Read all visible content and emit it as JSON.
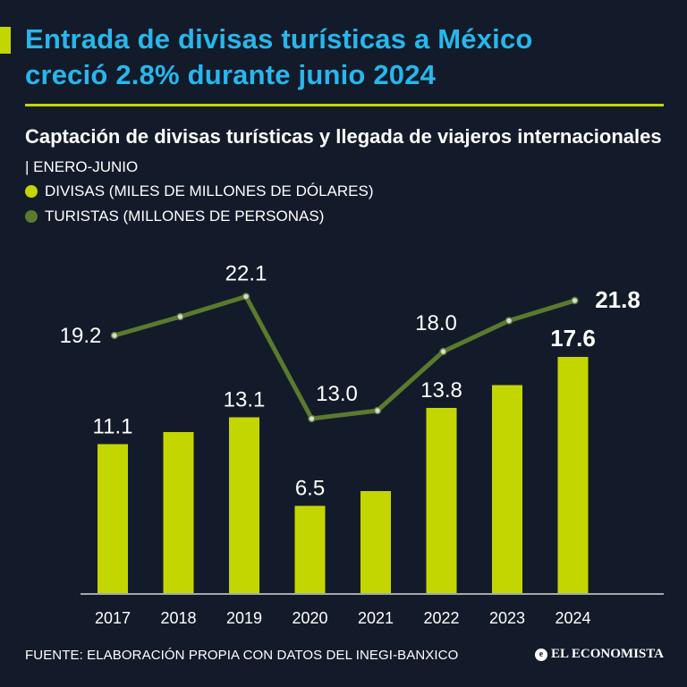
{
  "headline": {
    "line1": "Entrada de divisas turísticas a México",
    "line2": "creció 2.8% durante junio 2024"
  },
  "subtitle": {
    "bold_text": "Captación de divisas turísticas y llegada de viajeros internacionales",
    "separator": " | ",
    "period": "ENERO-JUNIO"
  },
  "colors": {
    "background": "#131b2a",
    "headline": "#27b7ec",
    "accent": "#c4d600",
    "bars": "#c4d600",
    "line": "#5b7a2e"
  },
  "footer": {
    "source": "FUENTE: ELABORACIÓN PROPIA CON DATOS DEL INEGI-BANXICO",
    "brand": "EL ECONOMISTA",
    "brand_icon": "e-logo-icon"
  },
  "chart_data": {
    "type": "bar",
    "categories": [
      "2017",
      "2018",
      "2019",
      "2020",
      "2021",
      "2022",
      "2023",
      "2024"
    ],
    "ylim": [
      0,
      25
    ],
    "legend_position": "top-left",
    "grid": false,
    "series": [
      {
        "name": "DIVISAS (MILES DE MILLONES DE DÓLARES)",
        "type": "bar",
        "values": [
          11.1,
          12.0,
          13.1,
          6.5,
          7.6,
          13.8,
          15.5,
          17.6
        ],
        "labels": [
          "11.1",
          "",
          "13.1",
          "6.5",
          "",
          "13.8",
          "",
          "17.6"
        ]
      },
      {
        "name": "TURISTAS (MILLONES DE PERSONAS)",
        "type": "line",
        "values": [
          19.2,
          20.6,
          22.1,
          13.0,
          13.6,
          18.0,
          20.3,
          21.8
        ],
        "labels": [
          "19.2",
          "",
          "22.1",
          "13.0",
          "",
          "18.0",
          "",
          "21.8"
        ]
      }
    ]
  }
}
